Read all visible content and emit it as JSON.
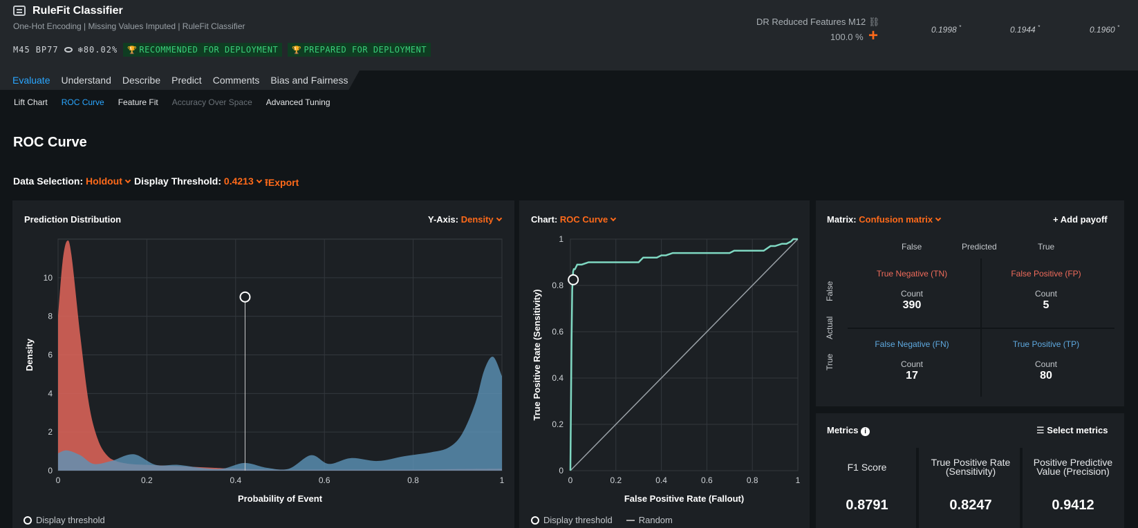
{
  "header": {
    "title": "RuleFit Classifier",
    "subtitle": "One-Hot Encoding | Missing Values Imputed | RuleFit Classifier",
    "model_id": "M45",
    "blueprint": "BP77",
    "sample_pct": "80.02%",
    "badge_recommended": "RECOMMENDED FOR DEPLOYMENT",
    "badge_prepared": "PREPARED FOR DEPLOYMENT",
    "feature_list": "DR Reduced Features M12",
    "feature_pct": "100.0 %",
    "scores": [
      "0.1998",
      "0.1944",
      "0.1960"
    ],
    "score_mark": "*"
  },
  "tabs": [
    "Evaluate",
    "Understand",
    "Describe",
    "Predict",
    "Comments",
    "Bias and Fairness"
  ],
  "subtabs": [
    "Lift Chart",
    "ROC Curve",
    "Feature Fit",
    "Accuracy Over Space",
    "Advanced Tuning"
  ],
  "page_title": "ROC Curve",
  "controls": {
    "data_selection_label": "Data Selection:",
    "data_selection_value": "Holdout",
    "threshold_label": "Display Threshold:",
    "threshold_value": "0.4213",
    "export_label": "Export"
  },
  "dist_panel": {
    "title": "Prediction Distribution",
    "yaxis_label": "Y-Axis:",
    "yaxis_value": "Density",
    "xlabel": "Probability of Event",
    "ylabel": "Density",
    "legend": "Display threshold"
  },
  "roc_panel": {
    "chart_label": "Chart:",
    "chart_value": "ROC Curve",
    "xlabel": "False Positive Rate (Fallout)",
    "ylabel": "True Positive Rate (Sensitivity)",
    "legend_threshold": "Display threshold",
    "legend_random": "Random"
  },
  "matrix": {
    "label": "Matrix:",
    "value": "Confusion matrix",
    "add_payoff": "Add payoff",
    "predicted": "Predicted",
    "actual": "Actual",
    "false": "False",
    "true": "True",
    "count_label": "Count",
    "tn_name": "True Negative (TN)",
    "tn": "390",
    "fp_name": "False Positive (FP)",
    "fp": "5",
    "fn_name": "False Negative (FN)",
    "fn": "17",
    "tp_name": "True Positive (TP)",
    "tp": "80",
    "neg_color": "#ef6b5b",
    "pos_color": "#5ea9e0"
  },
  "metrics": {
    "title": "Metrics",
    "select_label": "Select metrics",
    "items": [
      {
        "name": "F1 Score",
        "value": "0.8791"
      },
      {
        "name": "True Positive Rate (Sensitivity)",
        "value": "0.8247"
      },
      {
        "name": "Positive Predictive Value (Precision)",
        "value": "0.9412"
      }
    ]
  },
  "chart_data": [
    {
      "type": "area",
      "xlabel": "Probability of Event",
      "ylabel": "Density",
      "xlim": [
        0,
        1
      ],
      "ylim": [
        0,
        12
      ],
      "x_ticks": [
        "0",
        "0.2",
        "0.4",
        "0.6",
        "0.8",
        "1"
      ],
      "y_ticks": [
        "0",
        "2",
        "4",
        "6",
        "8",
        "10"
      ],
      "threshold": 0.4213,
      "threshold_marker_y": 9,
      "series": [
        {
          "color": "#e2665a",
          "x": [
            0,
            0.01,
            0.02,
            0.03,
            0.05,
            0.07,
            0.09,
            0.11,
            0.13,
            0.16,
            0.2,
            0.25,
            0.3,
            0.35,
            0.4,
            0.5,
            0.6,
            0.7,
            0.8,
            0.9,
            1.0
          ],
          "y": [
            8.0,
            10.8,
            11.9,
            11.2,
            7.0,
            3.4,
            1.6,
            0.8,
            0.5,
            0.35,
            0.3,
            0.25,
            0.2,
            0.15,
            0.1,
            0.05,
            0.05,
            0.05,
            0.05,
            0.08,
            0.1
          ]
        },
        {
          "color": "#5c93b8",
          "x": [
            0,
            0.02,
            0.05,
            0.08,
            0.12,
            0.17,
            0.22,
            0.27,
            0.32,
            0.37,
            0.42,
            0.47,
            0.52,
            0.57,
            0.61,
            0.66,
            0.72,
            0.78,
            0.84,
            0.88,
            0.91,
            0.94,
            0.96,
            0.98,
            1.0
          ],
          "y": [
            0.9,
            1.05,
            0.8,
            0.35,
            0.5,
            0.85,
            0.3,
            0.3,
            0.15,
            0.1,
            0.4,
            0.15,
            0.1,
            0.8,
            0.35,
            0.65,
            0.5,
            0.75,
            0.95,
            1.2,
            1.9,
            3.5,
            5.2,
            5.9,
            4.9
          ]
        }
      ]
    },
    {
      "type": "line",
      "xlabel": "False Positive Rate (Fallout)",
      "ylabel": "True Positive Rate (Sensitivity)",
      "xlim": [
        0,
        1
      ],
      "ylim": [
        0,
        1
      ],
      "x_ticks": [
        "0",
        "0.2",
        "0.4",
        "0.6",
        "0.8",
        "1"
      ],
      "y_ticks": [
        "0",
        "0.2",
        "0.4",
        "0.6",
        "0.8",
        "1"
      ],
      "threshold_point": [
        0.0127,
        0.8247
      ],
      "series": [
        {
          "color": "#7fd8c2",
          "x": [
            0,
            0.005,
            0.008,
            0.01,
            0.012,
            0.015,
            0.02,
            0.03,
            0.05,
            0.08,
            0.1,
            0.2,
            0.3,
            0.32,
            0.38,
            0.4,
            0.42,
            0.45,
            0.5,
            0.6,
            0.7,
            0.72,
            0.78,
            0.8,
            0.85,
            0.88,
            0.9,
            0.93,
            0.95,
            0.97,
            0.98,
            1.0
          ],
          "y": [
            0,
            0.55,
            0.78,
            0.82,
            0.86,
            0.87,
            0.87,
            0.89,
            0.89,
            0.9,
            0.9,
            0.9,
            0.9,
            0.92,
            0.92,
            0.93,
            0.93,
            0.94,
            0.94,
            0.94,
            0.94,
            0.95,
            0.95,
            0.95,
            0.95,
            0.97,
            0.97,
            0.98,
            0.98,
            0.99,
            1.0,
            1.0
          ]
        },
        {
          "color": "#9aa1a7",
          "x": [
            0,
            1
          ],
          "y": [
            0,
            1
          ]
        }
      ]
    }
  ]
}
